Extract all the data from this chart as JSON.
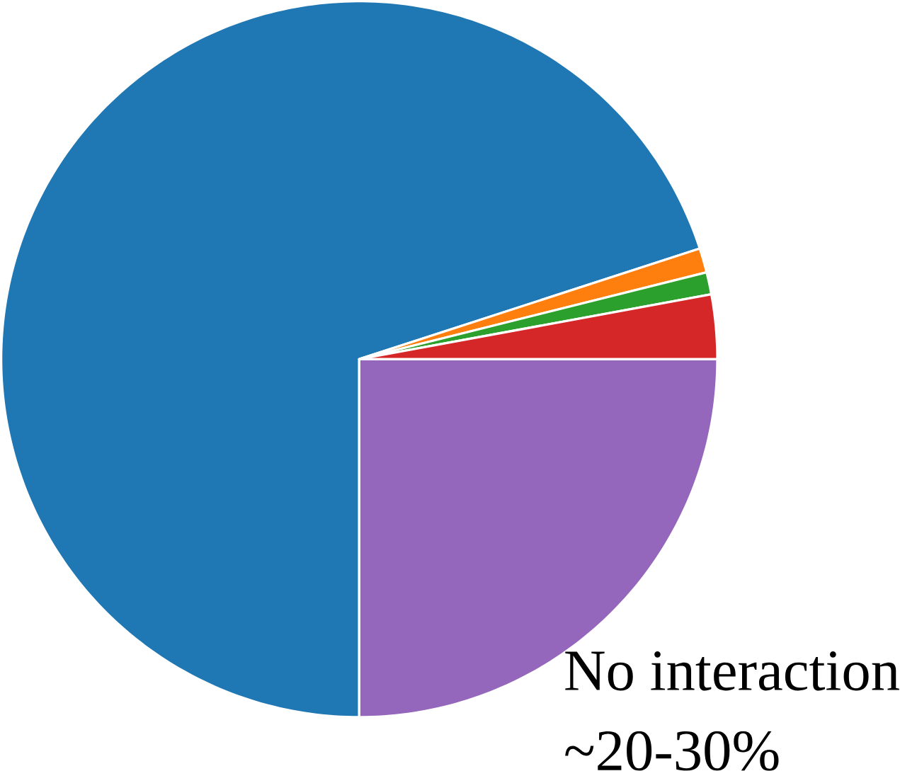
{
  "chart_data": {
    "type": "pie",
    "categories": [
      null,
      null,
      null,
      null,
      "No interaction"
    ],
    "values": [
      70.0,
      1.1,
      1.0,
      2.9,
      25.0
    ],
    "colors": [
      "#1f77b4",
      "#ff7f0e",
      "#2ca02c",
      "#d62728",
      "#9467bd"
    ],
    "annotations": [
      "~20-30%"
    ]
  }
}
